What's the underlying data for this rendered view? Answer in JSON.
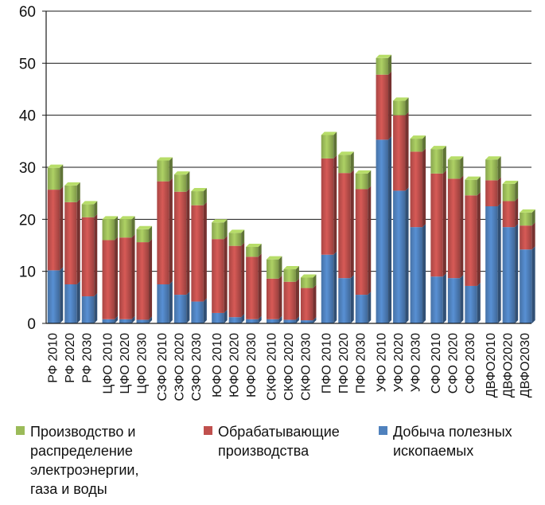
{
  "chart_data": {
    "type": "bar",
    "stacked": true,
    "title": "",
    "xlabel": "",
    "ylabel": "",
    "ylim": [
      0,
      60
    ],
    "yticks": [
      0,
      10,
      20,
      30,
      40,
      50,
      60
    ],
    "grid": "horizontal",
    "legend_position": "bottom",
    "categories": [
      "РФ 2010",
      "РФ 2020",
      "РФ 2030",
      "ЦФО 2010",
      "ЦФО 2020",
      "ЦФО 2030",
      "СЗФО 2010",
      "СЗФО 2020",
      "СЗФО 2030",
      "ЮФО 2010",
      "ЮФО 2020",
      "ЮФО 2030",
      "СКФО 2010",
      "СКФО 2020",
      "СКФО 2030",
      "ПФО 2010",
      "ПФО 2020",
      "ПФО 2030",
      "УФО 2010",
      "УФО 2020",
      "УФО 2030",
      "СФО 2010",
      "СФО 2020",
      "СФО 2030",
      "ДВФО2010",
      "ДВФО2020",
      "ДВФО2030"
    ],
    "series": [
      {
        "name": "Добыча полезных ископаемых",
        "color": "#4f81bd",
        "values": [
          10.2,
          7.5,
          5.2,
          0.8,
          0.8,
          0.7,
          7.5,
          5.5,
          4.2,
          2.0,
          1.2,
          0.8,
          0.8,
          0.7,
          0.6,
          13.2,
          8.7,
          5.5,
          35.3,
          25.5,
          18.5,
          9.0,
          8.7,
          7.2,
          22.5,
          18.5,
          14.2
        ]
      },
      {
        "name": "Обрабатывающие производства",
        "color": "#c0504d",
        "values": [
          15.5,
          15.8,
          15.2,
          15.2,
          15.7,
          14.9,
          19.8,
          19.8,
          18.5,
          14.2,
          13.7,
          12.0,
          7.8,
          7.3,
          6.2,
          18.5,
          20.2,
          20.3,
          12.5,
          14.5,
          14.5,
          19.8,
          19.1,
          17.4,
          5.0,
          5.0,
          4.6
        ]
      },
      {
        "name": "Производство и распределение электроэнергии, газа и воды",
        "color": "#9bbb59",
        "values": [
          4.2,
          3.2,
          2.5,
          4.0,
          3.5,
          2.5,
          4.0,
          3.3,
          2.7,
          3.2,
          2.5,
          1.9,
          3.7,
          2.4,
          2.0,
          4.5,
          3.5,
          3.0,
          3.2,
          2.8,
          2.5,
          4.7,
          3.7,
          3.0,
          4.0,
          3.3,
          2.5
        ]
      }
    ]
  },
  "legend": [
    {
      "label": "Производство и\nраспределение\nэлектроэнергии,\nгаза и воды",
      "color": "#9bbb59"
    },
    {
      "label": "Обрабатывающие\nпроизводства",
      "color": "#c0504d"
    },
    {
      "label": "Добыча полезных\nископаемых",
      "color": "#4f81bd"
    }
  ]
}
